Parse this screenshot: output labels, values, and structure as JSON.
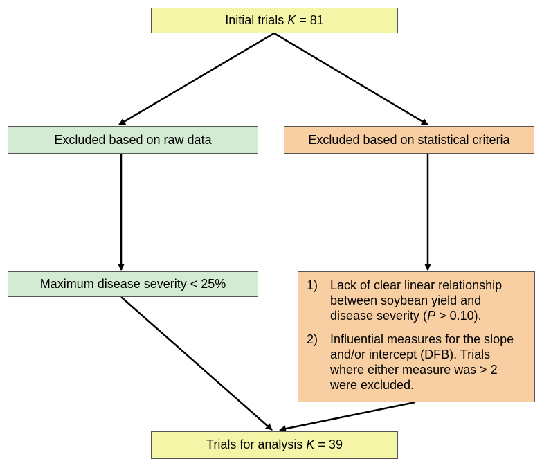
{
  "initial": {
    "prefix": "Initial trials ",
    "var": "K",
    "suffix": " = 81"
  },
  "raw": {
    "label": "Excluded based on raw data"
  },
  "statistical": {
    "label": "Excluded based on statistical criteria"
  },
  "max_severity": {
    "label": "Maximum disease severity < 25%"
  },
  "criteria": [
    {
      "num": "1)",
      "line1": "Lack of clear linear relationship",
      "line2": "between soybean yield and",
      "line3_prefix": "disease severity (",
      "line3_var": "P",
      "line3_suffix": " > 0.10)."
    },
    {
      "num": "2)",
      "line1": "Influential measures for the slope",
      "line2": "and/or intercept (DFB). Trials",
      "line3": "where either measure was > 2",
      "line4": "were excluded."
    }
  ],
  "final": {
    "prefix": "Trials for analysis ",
    "var": "K",
    "suffix": " = 39"
  },
  "colors": {
    "yellow": "#f5f5a8",
    "green": "#d2ebd2",
    "orange": "#f7cfa3",
    "border": "#555555",
    "arrow": "#000000"
  }
}
